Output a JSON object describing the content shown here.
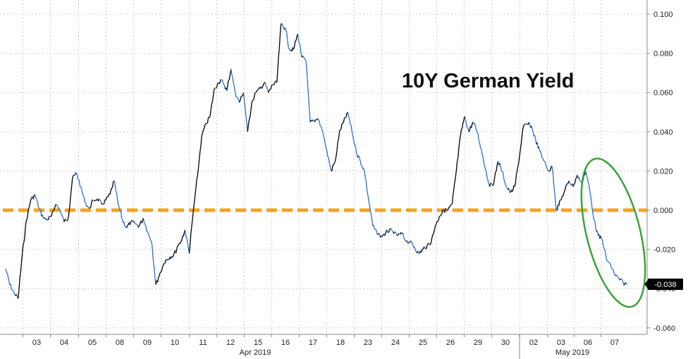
{
  "chart_data": {
    "type": "line",
    "title": "10Y German Yield",
    "ylim": [
      -0.062,
      0.103
    ],
    "yticks": [
      "0.100",
      "0.080",
      "0.060",
      "0.040",
      "0.020",
      "0.000",
      "-0.020",
      "-0.040",
      "-0.060"
    ],
    "ytick_values": [
      0.1,
      0.08,
      0.06,
      0.04,
      0.02,
      0.0,
      -0.02,
      -0.04,
      -0.06
    ],
    "x_days": [
      "03",
      "04",
      "05",
      "08",
      "09",
      "10",
      "11",
      "12",
      "15",
      "16",
      "17",
      "18",
      "23",
      "24",
      "25",
      "26",
      "29",
      "30",
      "02",
      "03",
      "06",
      "07"
    ],
    "months": [
      "Apr 2019",
      "May 2019"
    ],
    "last_value_label": "-0.038",
    "grid": true,
    "colors": {
      "line_up": "#000000",
      "line_down": "#2b6fc7",
      "zero_line": "#f0a51c",
      "ellipse": "#3aa33a",
      "last_badge": "#000000"
    },
    "series": [
      {
        "day_values": [
          [
            -0.03,
            -0.038,
            -0.042,
            -0.045
          ],
          [
            -0.022,
            -0.005,
            0.005,
            0.008,
            0.001,
            -0.004
          ],
          [
            -0.005,
            -0.003,
            0.003,
            0.0,
            -0.006,
            -0.004
          ],
          [
            0.016,
            0.019,
            0.012,
            0.004,
            0.001
          ],
          [
            0.005,
            0.006,
            0.003,
            0.005
          ],
          [
            0.008,
            0.015,
            0.003,
            -0.005,
            -0.009,
            -0.006
          ],
          [
            -0.007,
            -0.008,
            -0.004,
            -0.011
          ],
          [
            -0.016,
            -0.038,
            -0.032,
            -0.027
          ],
          [
            -0.025,
            -0.024,
            -0.02,
            -0.016,
            -0.01
          ],
          [
            -0.022,
            0.0,
            0.018,
            0.038,
            0.044
          ],
          [
            0.048,
            0.062,
            0.065,
            0.066
          ],
          [
            0.061,
            0.072,
            0.06,
            0.055
          ],
          [
            0.06,
            0.04,
            0.055,
            0.06
          ],
          [
            0.062,
            0.065,
            0.06,
            0.064
          ],
          [
            0.065,
            0.095,
            0.093,
            0.082
          ],
          [
            0.082,
            0.09,
            0.078
          ],
          [
            0.076,
            0.045,
            0.045,
            0.046,
            0.04
          ],
          [
            0.03,
            0.02,
            0.025
          ],
          [
            0.04,
            0.045,
            0.05,
            0.04,
            0.03
          ],
          [
            0.025,
            0.02,
            0.005,
            -0.008
          ],
          [
            -0.012,
            -0.013,
            -0.012,
            -0.01
          ],
          [
            -0.012,
            -0.013,
            -0.012,
            -0.016
          ],
          [
            -0.016,
            -0.019,
            -0.022,
            -0.02
          ],
          [
            -0.018,
            -0.016,
            -0.008
          ],
          [
            -0.003,
            0.0,
            0.0
          ],
          [
            0.003,
            0.02,
            0.038,
            0.048,
            0.04
          ],
          [
            0.045,
            0.04,
            0.031,
            0.021,
            0.012
          ],
          [
            0.014,
            0.025,
            0.02,
            0.012,
            0.009
          ],
          [
            0.012,
            0.025,
            0.042,
            0.044
          ],
          [
            0.043,
            0.036,
            0.03,
            0.025,
            0.02,
            0.022
          ],
          [
            0.0,
            0.005,
            0.01,
            0.015,
            0.012,
            0.018,
            0.014
          ],
          [
            0.02,
            0.01,
            -0.005,
            -0.013,
            -0.015,
            -0.025,
            -0.028,
            -0.033,
            -0.035,
            -0.037,
            -0.038
          ]
        ]
      }
    ]
  }
}
